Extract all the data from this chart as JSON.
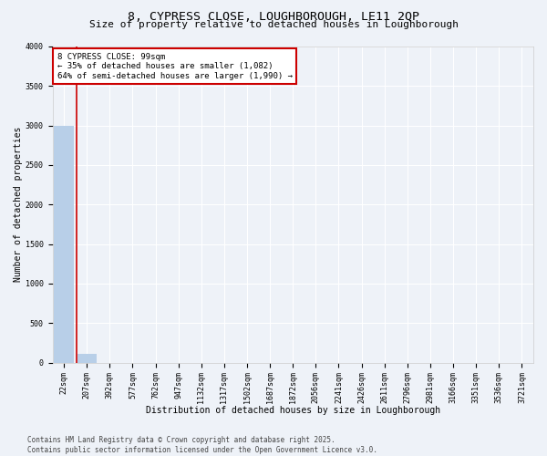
{
  "title": "8, CYPRESS CLOSE, LOUGHBOROUGH, LE11 2QP",
  "subtitle": "Size of property relative to detached houses in Loughborough",
  "xlabel": "Distribution of detached houses by size in Loughborough",
  "ylabel": "Number of detached properties",
  "footer_line1": "Contains HM Land Registry data © Crown copyright and database right 2025.",
  "footer_line2": "Contains public sector information licensed under the Open Government Licence v3.0.",
  "categories": [
    "22sqm",
    "207sqm",
    "392sqm",
    "577sqm",
    "762sqm",
    "947sqm",
    "1132sqm",
    "1317sqm",
    "1502sqm",
    "1687sqm",
    "1872sqm",
    "2056sqm",
    "2241sqm",
    "2426sqm",
    "2611sqm",
    "2796sqm",
    "2981sqm",
    "3166sqm",
    "3351sqm",
    "3536sqm",
    "3721sqm"
  ],
  "values": [
    3000,
    110,
    0,
    0,
    0,
    0,
    0,
    0,
    0,
    0,
    0,
    0,
    0,
    0,
    0,
    0,
    0,
    0,
    0,
    0,
    0
  ],
  "bar_color": "#b8cfe8",
  "annotation_text": "8 CYPRESS CLOSE: 99sqm\n← 35% of detached houses are smaller (1,082)\n64% of semi-detached houses are larger (1,990) →",
  "annotation_box_color": "#cc0000",
  "property_line_x": 0.55,
  "ylim": [
    0,
    4000
  ],
  "yticks": [
    0,
    500,
    1000,
    1500,
    2000,
    2500,
    3000,
    3500,
    4000
  ],
  "background_color": "#eef2f8",
  "grid_color": "#ffffff",
  "title_fontsize": 9.5,
  "subtitle_fontsize": 8,
  "label_fontsize": 7,
  "tick_fontsize": 6,
  "annotation_fontsize": 6.5,
  "footer_fontsize": 5.5
}
